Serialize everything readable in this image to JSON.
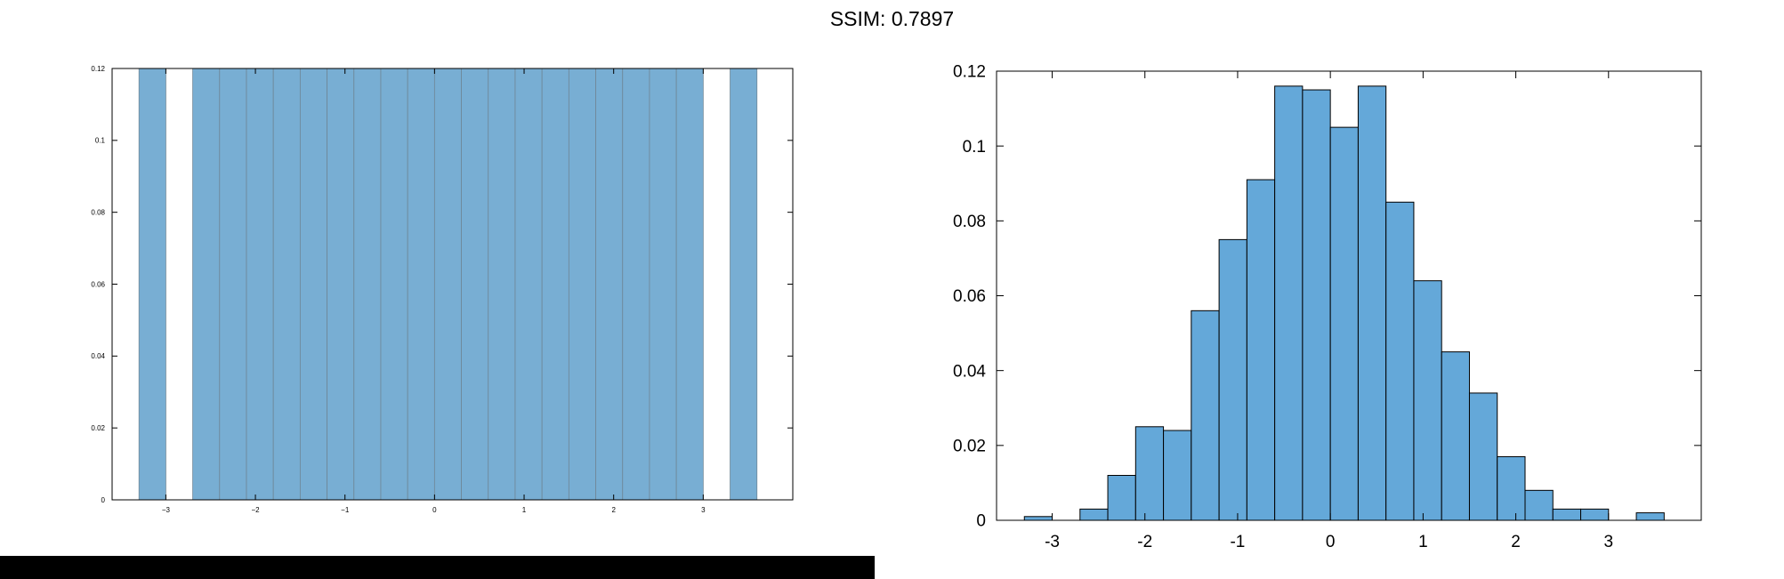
{
  "header": {
    "title": "SSIM: 0.7897"
  },
  "colors": {
    "bar_fill_left": "#78aed3",
    "bar_fill_right": "#64a8d9",
    "bar_edge_left": "#6f8797",
    "bar_edge_right": "#000000",
    "axis": "#000000",
    "banner": "#000000"
  },
  "chart_data": [
    {
      "type": "bar",
      "panel": "left",
      "bin_edges": [
        -3.3,
        -3.0,
        -2.7,
        -2.4,
        -2.1,
        -1.8,
        -1.5,
        -1.2,
        -0.9,
        -0.6,
        -0.3,
        0.0,
        0.3,
        0.6,
        0.9,
        1.2,
        1.5,
        1.8,
        2.1,
        2.4,
        2.7,
        3.0,
        3.3,
        3.6
      ],
      "values": [
        0.12,
        0,
        0.12,
        0.12,
        0.12,
        0.12,
        0.12,
        0.12,
        0.12,
        0.12,
        0.12,
        0.12,
        0.12,
        0.12,
        0.12,
        0.12,
        0.12,
        0.12,
        0.12,
        0.12,
        0.12,
        0,
        0.12
      ],
      "xlim": [
        -3.6,
        4.0
      ],
      "ylim": [
        0,
        0.12
      ],
      "xticks": [
        -3,
        -2,
        -1,
        0,
        1,
        2,
        3
      ],
      "yticks": [
        0,
        0.02,
        0.04,
        0.06,
        0.08,
        0.1,
        0.12
      ],
      "xticklabels": [
        "−3",
        "−2",
        "−1",
        "0",
        "1",
        "2",
        "3"
      ],
      "yticklabels": [
        "0",
        "0.02",
        "0.04",
        "0.06",
        "0.08",
        "0.1",
        "0.12"
      ],
      "title": "",
      "xlabel": "",
      "ylabel": "",
      "grid": false
    },
    {
      "type": "bar",
      "panel": "right",
      "bin_edges": [
        -3.3,
        -3.0,
        -2.7,
        -2.4,
        -2.1,
        -1.8,
        -1.5,
        -1.2,
        -0.9,
        -0.6,
        -0.3,
        0.0,
        0.3,
        0.6,
        0.9,
        1.2,
        1.5,
        1.8,
        2.1,
        2.4,
        2.7,
        3.0,
        3.3,
        3.6
      ],
      "values": [
        0.001,
        0,
        0.003,
        0.012,
        0.025,
        0.024,
        0.056,
        0.075,
        0.091,
        0.116,
        0.115,
        0.105,
        0.116,
        0.085,
        0.064,
        0.045,
        0.034,
        0.017,
        0.008,
        0.003,
        0.003,
        0,
        0.002
      ],
      "xlim": [
        -3.6,
        4.0
      ],
      "ylim": [
        0,
        0.12
      ],
      "xticks": [
        -3,
        -2,
        -1,
        0,
        1,
        2,
        3
      ],
      "yticks": [
        0,
        0.02,
        0.04,
        0.06,
        0.08,
        0.1,
        0.12
      ],
      "xticklabels": [
        "-3",
        "-2",
        "-1",
        "0",
        "1",
        "2",
        "3"
      ],
      "yticklabels": [
        "0",
        "0.02",
        "0.04",
        "0.06",
        "0.08",
        "0.1",
        "0.12"
      ],
      "title": "",
      "xlabel": "",
      "ylabel": "",
      "grid": false
    }
  ]
}
